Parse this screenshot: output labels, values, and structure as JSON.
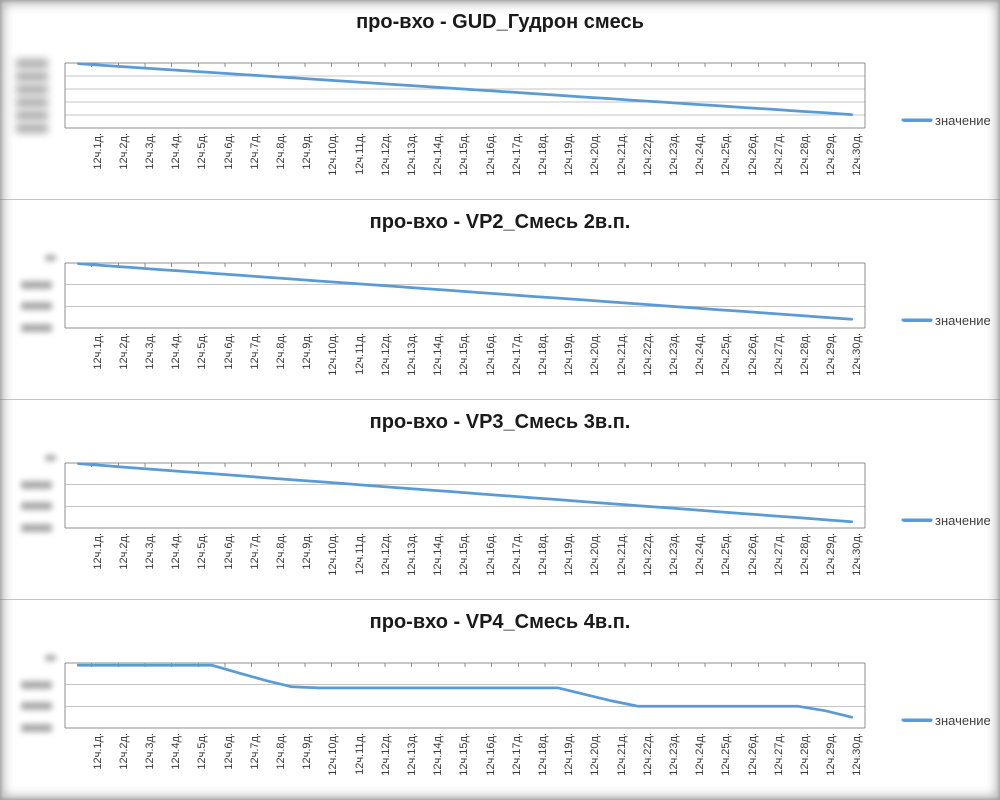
{
  "page": {
    "colors": {
      "series_blue": "#5b9bd5",
      "axis_line": "#8f8f8f",
      "gridline": "#c4c4c4",
      "title_text": "#1a1a1a",
      "x_label_text": "#3a3a3a",
      "legend_text": "#404040",
      "chart_separator": "#c6c6c6",
      "redacted_label_gray": "#949494"
    }
  },
  "x_categories": [
    "12ч.1д.",
    "12ч.2д.",
    "12ч.3д.",
    "12ч.4д.",
    "12ч.5д.",
    "12ч.6д.",
    "12ч.7д.",
    "12ч.8д.",
    "12ч.9д.",
    "12ч.10д.",
    "12ч.11д.",
    "12ч.12д.",
    "12ч.13д.",
    "12ч.14д.",
    "12ч.15д.",
    "12ч.16д.",
    "12ч.17д.",
    "12ч.18д.",
    "12ч.19д.",
    "12ч.20д.",
    "12ч.21д.",
    "12ч.22д.",
    "12ч.23д.",
    "12ч.24д.",
    "12ч.25д.",
    "12ч.26д.",
    "12ч.27д.",
    "12ч.28д.",
    "12ч.29д.",
    "12ч.30д."
  ],
  "chart_data": [
    {
      "type": "line",
      "title": "про-вхо - GUD_Гудрон смесь",
      "legend_position": "right",
      "x_axis": {
        "position": "top",
        "labels_position": "bottom",
        "label_rotation_deg": 90
      },
      "y_axis": {
        "labels_visible": false,
        "labels_redacted": true,
        "gridline_intervals": 5,
        "value_units": "gridline-intervals below top axis"
      },
      "series": [
        {
          "name": "значение",
          "values": [
            -0.05,
            -0.19,
            -0.32,
            -0.46,
            -0.59,
            -0.73,
            -0.86,
            -1.0,
            -1.13,
            -1.27,
            -1.4,
            -1.54,
            -1.67,
            -1.81,
            -1.94,
            -2.08,
            -2.21,
            -2.35,
            -2.48,
            -2.62,
            -2.75,
            -2.89,
            -3.02,
            -3.16,
            -3.29,
            -3.43,
            -3.56,
            -3.7,
            -3.83,
            -3.97
          ]
        }
      ]
    },
    {
      "type": "line",
      "title": "про-вхо - VP2_Смесь 2в.п.",
      "legend_position": "right",
      "x_axis": {
        "position": "top",
        "labels_position": "bottom",
        "label_rotation_deg": 90
      },
      "y_axis": {
        "labels_visible": false,
        "labels_redacted": true,
        "gridline_intervals": 3,
        "value_units": "gridline-intervals below top axis"
      },
      "series": [
        {
          "name": "значение",
          "values": [
            -0.03,
            -0.12,
            -0.21,
            -0.3,
            -0.38,
            -0.47,
            -0.56,
            -0.65,
            -0.74,
            -0.83,
            -0.92,
            -1.0,
            -1.09,
            -1.18,
            -1.27,
            -1.36,
            -1.45,
            -1.54,
            -1.62,
            -1.71,
            -1.8,
            -1.89,
            -1.98,
            -2.07,
            -2.16,
            -2.24,
            -2.33,
            -2.42,
            -2.51,
            -2.6
          ]
        }
      ]
    },
    {
      "type": "line",
      "title": "про-вхо - VP3_Смесь 3в.п.",
      "legend_position": "right",
      "x_axis": {
        "position": "top",
        "labels_position": "bottom",
        "label_rotation_deg": 90
      },
      "y_axis": {
        "labels_visible": false,
        "labels_redacted": true,
        "gridline_intervals": 3,
        "value_units": "gridline-intervals below top axis"
      },
      "series": [
        {
          "name": "значение",
          "values": [
            -0.03,
            -0.12,
            -0.22,
            -0.31,
            -0.4,
            -0.49,
            -0.58,
            -0.68,
            -0.77,
            -0.86,
            -0.95,
            -1.05,
            -1.14,
            -1.23,
            -1.32,
            -1.42,
            -1.51,
            -1.6,
            -1.69,
            -1.79,
            -1.88,
            -1.97,
            -2.06,
            -2.15,
            -2.25,
            -2.34,
            -2.43,
            -2.52,
            -2.62,
            -2.71
          ]
        }
      ]
    },
    {
      "type": "line",
      "title": "про-вхо - VP4_Смесь 4в.п.",
      "legend_position": "right",
      "x_axis": {
        "position": "top",
        "labels_position": "bottom",
        "label_rotation_deg": 90
      },
      "y_axis": {
        "labels_visible": false,
        "labels_redacted": true,
        "gridline_intervals": 3,
        "value_units": "gridline-intervals below top axis"
      },
      "series": [
        {
          "name": "значение",
          "values": [
            -0.1,
            -0.1,
            -0.1,
            -0.1,
            -0.1,
            -0.1,
            -0.45,
            -0.8,
            -1.1,
            -1.15,
            -1.15,
            -1.15,
            -1.15,
            -1.15,
            -1.15,
            -1.15,
            -1.15,
            -1.15,
            -1.15,
            -1.45,
            -1.75,
            -2.0,
            -2.0,
            -2.0,
            -2.0,
            -2.0,
            -2.0,
            -2.0,
            -2.2,
            -2.5
          ]
        }
      ]
    }
  ]
}
